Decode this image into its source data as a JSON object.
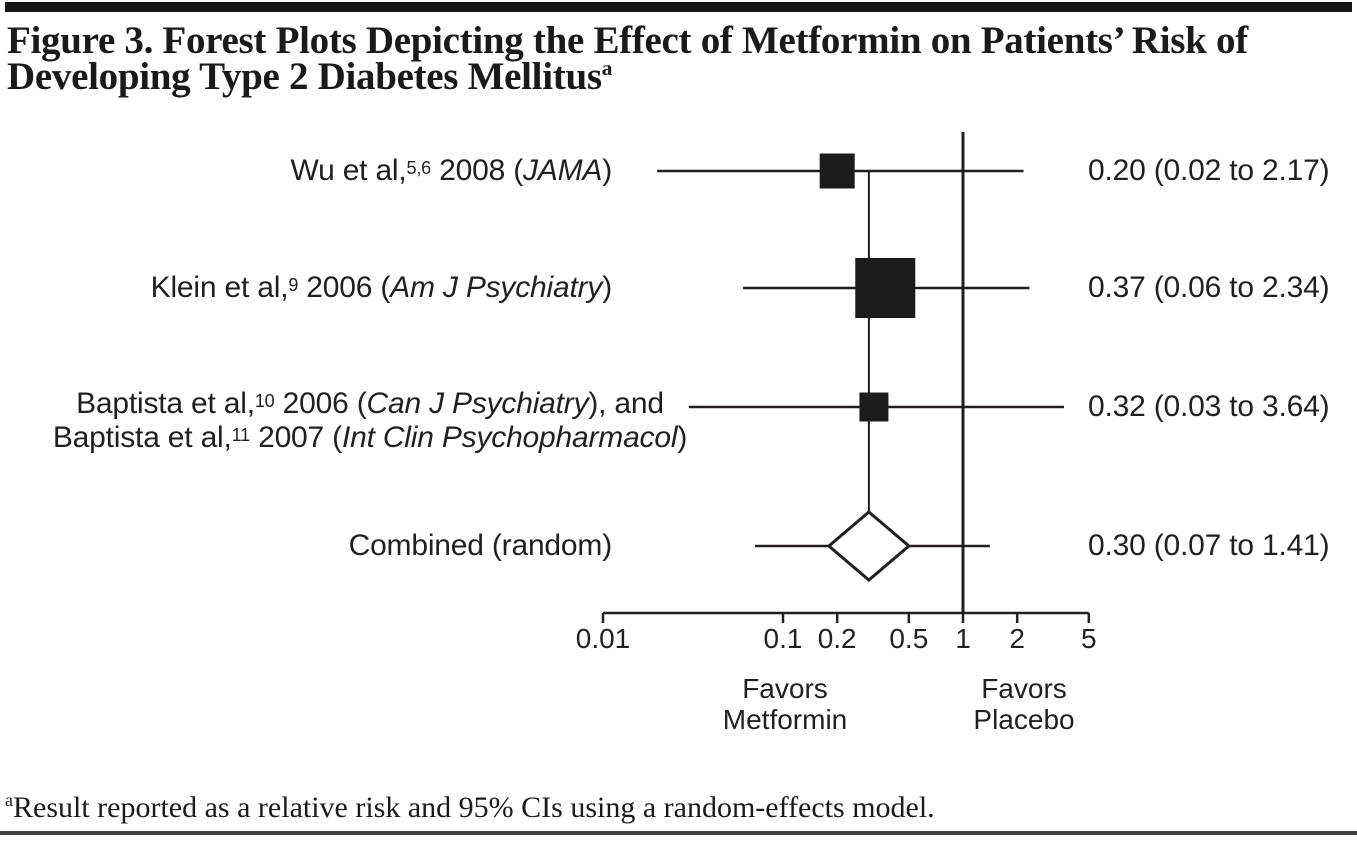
{
  "figure": {
    "title_line1": "Figure 3. Forest Plots Depicting the Effect of Metformin on Patients’ Risk of",
    "title_line2": "Developing Type 2 Diabetes Mellitus",
    "title_footnote_marker": "a",
    "footnote_marker": "a",
    "footnote_text": "Result reported as a relative risk and 95% CIs using a random-effects model."
  },
  "colors": {
    "ink": "#231f20",
    "square_fill": "#1c1c1c",
    "diamond_fill": "#ffffff",
    "top_bar": "#171717",
    "bottom_rule": "#3f3f3f",
    "background": "#ffffff"
  },
  "chart_data": {
    "type": "scatter",
    "subtype": "forest_plot",
    "x_scale": "log",
    "x_range": [
      0.01,
      5
    ],
    "x_ticks": [
      0.01,
      0.1,
      0.2,
      0.5,
      1,
      2,
      5
    ],
    "x_tick_labels": [
      "0.01",
      "0.1",
      "0.2",
      "0.5",
      "1",
      "2",
      "5"
    ],
    "reference_line_x": 1,
    "pooled_line_x": 0.3,
    "favors_left": {
      "line1": "Favors",
      "line2": "Metformin"
    },
    "favors_right": {
      "line1": "Favors",
      "line2": "Placebo"
    },
    "studies": [
      {
        "label": {
          "pre": "Wu et al,",
          "sup": "5,6",
          "mid": " 2008 (",
          "journal": "JAMA",
          "post": ")"
        },
        "estimate": 0.2,
        "ci_low": 0.02,
        "ci_high": 2.17,
        "value_text": "0.20 (0.02 to 2.17)",
        "marker_size_px": 35
      },
      {
        "label": {
          "pre": "Klein et al,",
          "sup": "9",
          "mid": " 2006 (",
          "journal": "Am J Psychiatry",
          "post": ")"
        },
        "estimate": 0.37,
        "ci_low": 0.06,
        "ci_high": 2.34,
        "value_text": "0.37 (0.06 to 2.34)",
        "marker_size_px": 60
      },
      {
        "label_line1": {
          "pre": "Baptista et al,",
          "sup": "10",
          "mid": " 2006 (",
          "journal": "Can J Psychiatry",
          "post": "), and"
        },
        "label_line2": {
          "pre": "Baptista et al,",
          "sup": "11",
          "mid": " 2007 (",
          "journal": "Int Clin Psychopharmacol",
          "post": ")"
        },
        "estimate": 0.32,
        "ci_low": 0.03,
        "ci_high": 3.64,
        "value_text": "0.32 (0.03 to 3.64)",
        "marker_size_px": 29
      }
    ],
    "combined": {
      "label": "Combined (random)",
      "estimate": 0.3,
      "ci_low": 0.07,
      "ci_high": 1.41,
      "value_text": "0.30 (0.07 to 1.41)"
    }
  }
}
